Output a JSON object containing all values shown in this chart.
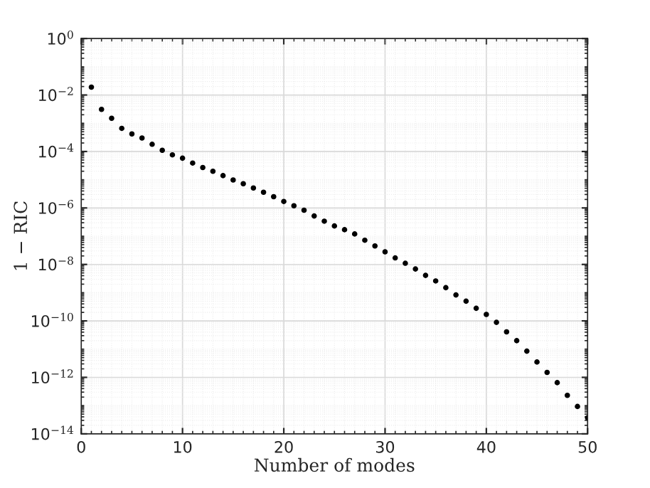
{
  "chart_data": {
    "type": "scatter",
    "xlabel": "Number of modes",
    "ylabel": "1 − RIC",
    "x": [
      1,
      2,
      3,
      4,
      5,
      6,
      7,
      8,
      9,
      10,
      11,
      12,
      13,
      14,
      15,
      16,
      17,
      18,
      19,
      20,
      21,
      22,
      23,
      24,
      25,
      26,
      27,
      28,
      29,
      30,
      31,
      32,
      33,
      34,
      35,
      36,
      37,
      38,
      39,
      40,
      41,
      42,
      43,
      44,
      45,
      46,
      47,
      48,
      49,
      50
    ],
    "series": [
      {
        "color": "#000000",
        "values": [
          0.019,
          0.0031,
          0.0015,
          0.00066,
          0.00042,
          0.0003,
          0.00018,
          0.00011,
          7.6e-05,
          5.8e-05,
          3.9e-05,
          2.7e-05,
          2e-05,
          1.4e-05,
          9.8e-06,
          7.2e-06,
          5.1e-06,
          3.6e-06,
          2.5e-06,
          1.7e-06,
          1.2e-06,
          8.3e-07,
          5.2e-07,
          3.4e-07,
          2.3e-07,
          1.7e-07,
          1.2e-07,
          7.2e-08,
          4.5e-08,
          2.8e-08,
          1.7e-08,
          1.1e-08,
          6.9e-09,
          4.1e-09,
          2.6e-09,
          1.5e-09,
          8.3e-10,
          5e-10,
          2.8e-10,
          1.7e-10,
          8.9e-11,
          4.1e-11,
          2e-11,
          8.5e-12,
          3.5e-12,
          1.5e-12,
          6.5e-13,
          2.3e-13,
          9.3e-14,
          3.7e-14
        ]
      }
    ],
    "log": "y",
    "xlim": [
      0,
      50
    ],
    "xticks": [
      0,
      10,
      20,
      30,
      40,
      50
    ],
    "ylim": [
      1e-14,
      1
    ],
    "yticks": [
      {
        "value": 1e-14,
        "label": "10$^{−14}$"
      },
      {
        "value": 1e-12,
        "label": "10$^{−12}$"
      },
      {
        "value": 1e-10,
        "label": "10$^{−10}$"
      },
      {
        "value": 1e-08,
        "label": "10$^{−8}$"
      },
      {
        "value": 1e-06,
        "label": "10$^{−6}$"
      },
      {
        "value": 0.0001,
        "label": "10$^{−4}$"
      },
      {
        "value": 0.01,
        "label": "10$^{−2}$"
      },
      {
        "value": 1,
        "label": "10$^{0}$"
      }
    ],
    "grid": true,
    "marker": "circle",
    "legend": false
  }
}
